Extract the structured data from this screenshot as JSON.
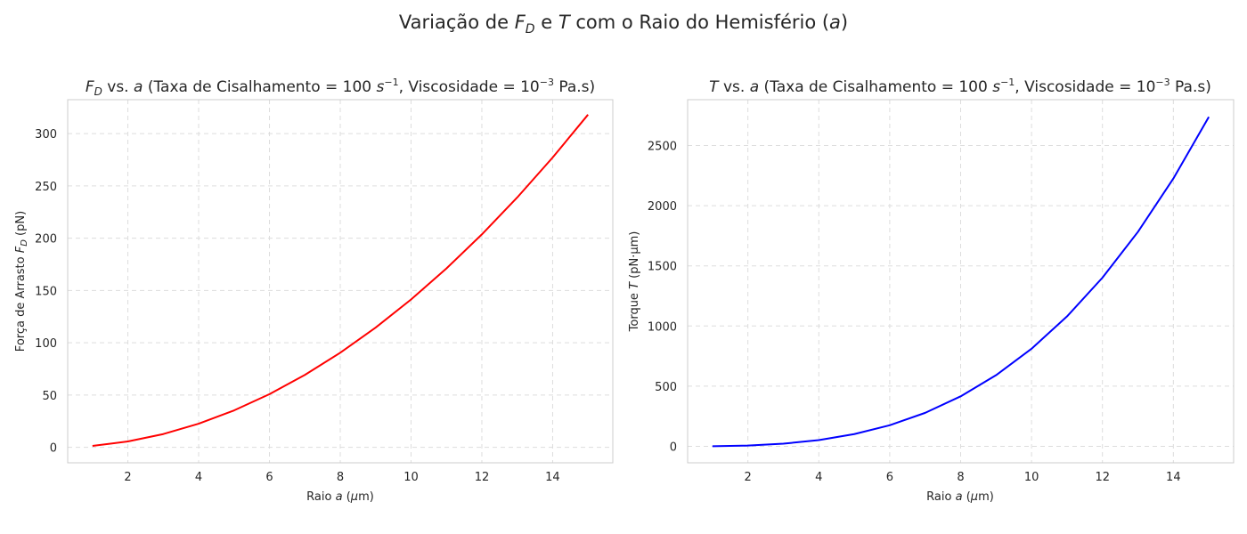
{
  "figure": {
    "suptitle": {
      "prefix": "Variação de ",
      "fd_main": "F",
      "fd_sub": "D",
      "middle": " e ",
      "t": "T",
      "suffix": " com o Raio do Hemisfério (",
      "a": "a",
      "close": ")"
    }
  },
  "chart_data": [
    {
      "type": "line",
      "title": {
        "var_main": "F",
        "var_sub": "D",
        "vs": " vs. ",
        "a": "a",
        "rate_text": " (Taxa de Cisalhamento = 100 ",
        "s": "s",
        "s_exp": "−1",
        "visc_text": ", Viscosidade = 10",
        "visc_exp": "−3",
        "tail": " Pa.s)"
      },
      "xlabel": {
        "pre": "Raio ",
        "a": "a",
        "mid": " (",
        "mu": "μ",
        "post": "m)"
      },
      "ylabel": {
        "pre": "Força de Arrasto ",
        "var_main": "F",
        "var_sub": "D",
        "post": " (pN)"
      },
      "xlim": [
        0.3,
        15.7
      ],
      "ylim": [
        -14.75,
        332.4
      ],
      "xticks": [
        "2",
        "4",
        "6",
        "8",
        "10",
        "12",
        "14"
      ],
      "yticks": [
        "0",
        "50",
        "100",
        "150",
        "200",
        "250",
        "300"
      ],
      "series": [
        {
          "color": "#ff0000",
          "x": [
            1,
            2,
            3,
            4,
            5,
            6,
            7,
            8,
            9,
            10,
            11,
            12,
            13,
            14,
            15
          ],
          "y": [
            1.41,
            5.66,
            12.72,
            22.62,
            35.34,
            50.89,
            69.27,
            90.48,
            114.51,
            141.37,
            171.06,
            203.58,
            238.92,
            277.09,
            318.09
          ]
        }
      ],
      "grid": true,
      "legend": "none"
    },
    {
      "type": "line",
      "title": {
        "var_main": "T",
        "vs": " vs. ",
        "a": "a",
        "rate_text": " (Taxa de Cisalhamento = 100 ",
        "s": "s",
        "s_exp": "−1",
        "visc_text": ", Viscosidade = 10",
        "visc_exp": "−3",
        "tail": " Pa.s)"
      },
      "xlabel": {
        "pre": "Raio ",
        "a": "a",
        "mid": " (",
        "mu": "μ",
        "post": "m)"
      },
      "ylabel": {
        "pre": "Torque ",
        "var_main": "T",
        "post": " (pN·μm)"
      },
      "xlim": [
        0.3,
        15.7
      ],
      "ylim": [
        -137,
        2881
      ],
      "xticks": [
        "2",
        "4",
        "6",
        "8",
        "10",
        "12",
        "14"
      ],
      "yticks": [
        "0",
        "500",
        "1000",
        "1500",
        "2000",
        "2500"
      ],
      "series": [
        {
          "color": "#0000ff",
          "x": [
            1,
            2,
            3,
            4,
            5,
            6,
            7,
            8,
            9,
            10,
            11,
            12,
            13,
            14,
            15
          ],
          "y": [
            0.81,
            6.5,
            21.9,
            51.9,
            101.4,
            175.2,
            278.2,
            415.3,
            591.3,
            811.1,
            1079.6,
            1401.6,
            1782.0,
            2225.7,
            2737.5
          ]
        }
      ],
      "grid": true,
      "legend": "none"
    }
  ]
}
